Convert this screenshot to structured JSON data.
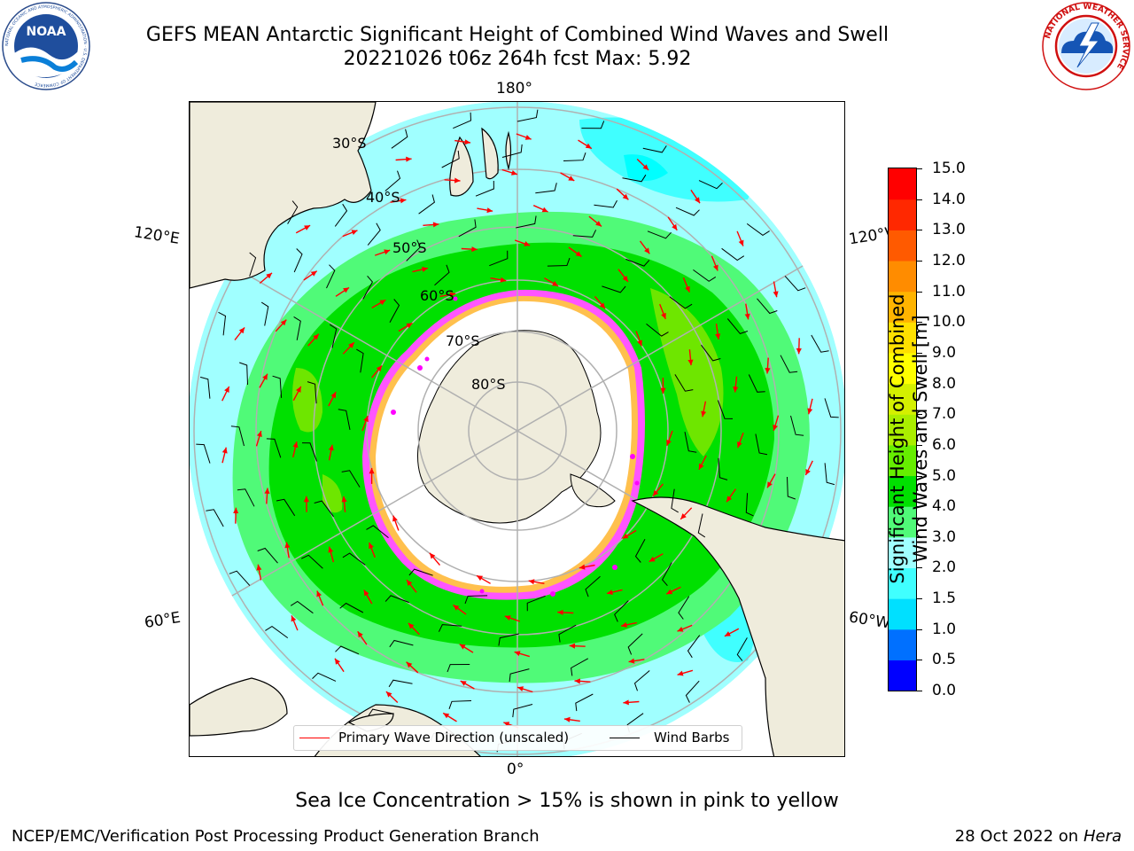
{
  "title": {
    "line1": "GEFS MEAN Antarctic Significant Height of Combined Wind Waves and Swell",
    "line2": "20221026 t06z 264h fcst   Max: 5.92"
  },
  "logos": {
    "noaa_text": "NOAA",
    "noaa_ring_text": "NATIONAL OCEANIC AND ATMOSPHERIC ADMINISTRATION · U.S. DEPARTMENT OF COMMERCE",
    "nws_ring_text": "NATIONAL WEATHER SERVICE"
  },
  "map": {
    "projection": "south-polar-stereographic",
    "center_lon_bottom": "0°",
    "lon_labels": {
      "top": "180°",
      "bottom": "0°",
      "upper_left": "120°E",
      "lower_left": "60°E",
      "upper_right": "120°W",
      "lower_right": "60°W"
    },
    "lat_labels": [
      "30°S",
      "40°S",
      "50°S",
      "60°S",
      "70°S",
      "80°S"
    ],
    "land_color": "#efecdc",
    "ocean_band_colors": {
      "2.0-3.0": "#a0ffff",
      "3.0-4.0": "#50fa78",
      "4.0-5.0": "#00e000",
      "5.0-6.0": "#6ee600",
      "1.5-2.0": "#40ffff",
      "1.0-1.5": "#00ffff"
    },
    "sea_ice_colors": [
      "#ff33ff",
      "#cc00cc",
      "#ffb347",
      "#ffd24d"
    ],
    "wave_arrow_color": "#ff0000",
    "wind_barb_color": "#000000"
  },
  "legend": {
    "items": [
      {
        "label": "Primary Wave Direction (unscaled)",
        "color": "#ff0000"
      },
      {
        "label": "Wind Barbs",
        "color": "#000000"
      }
    ]
  },
  "colorbar": {
    "label_line1": "Significant Height of Combined",
    "label_line2": "Wind Waves and Swell [m]",
    "ticks": [
      "0.0",
      "0.5",
      "1.0",
      "1.5",
      "2.0",
      "3.0",
      "4.0",
      "5.0",
      "6.0",
      "7.0",
      "8.0",
      "9.0",
      "10.0",
      "11.0",
      "12.0",
      "13.0",
      "14.0",
      "15.0"
    ],
    "colors": [
      "#0000ff",
      "#0070ff",
      "#00e0ff",
      "#40ffff",
      "#a0ffff",
      "#50fa78",
      "#00e000",
      "#66ee00",
      "#aaee00",
      "#d4f000",
      "#ffff00",
      "#ffe000",
      "#ffb400",
      "#ff8c00",
      "#ff5a00",
      "#ff2800",
      "#ff0000"
    ]
  },
  "footer": {
    "note": "Sea Ice Concentration > 15% is shown in pink to yellow",
    "left": "NCEP/EMC/Verification Post Processing Product Generation Branch",
    "right_prefix": "28 Oct 2022 on ",
    "right_host": "Hera"
  }
}
